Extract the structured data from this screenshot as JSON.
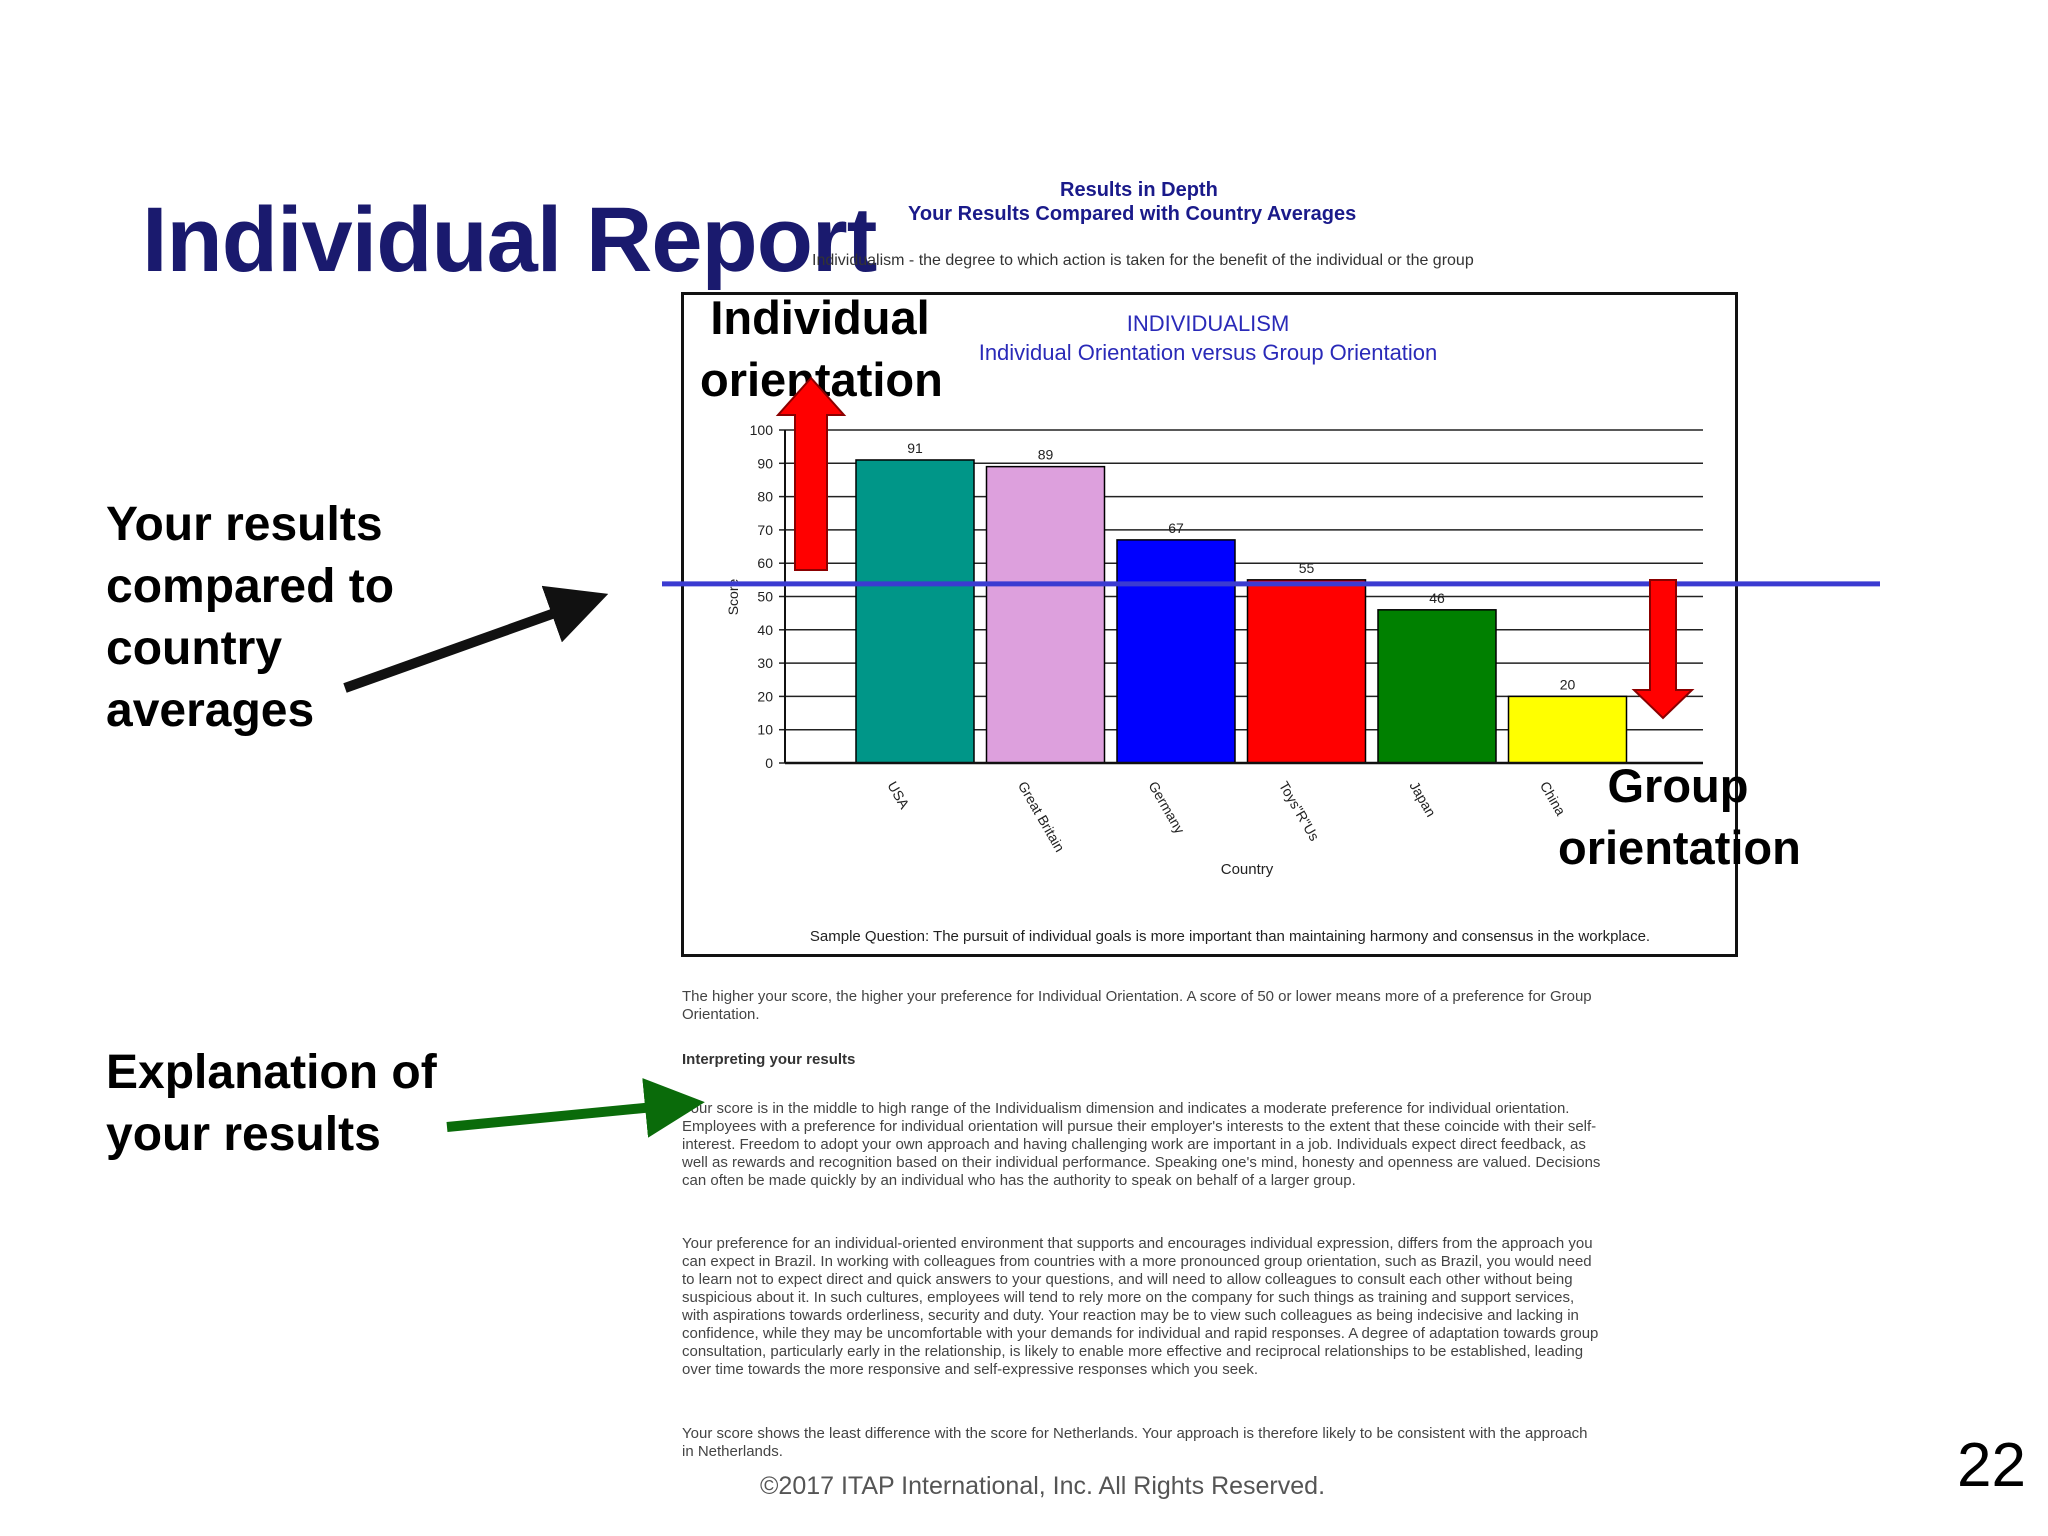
{
  "slide": {
    "title": "Individual Report",
    "page_number": "22",
    "footer": "©2017 ITAP International, Inc.  All Rights Reserved."
  },
  "report": {
    "heading": "Results in Depth",
    "subheading": "Your Results Compared with Country Averages",
    "definition": "Individualism - the degree to which action is taken for the benefit of the individual or the group",
    "interpretation_intro": "The higher your score, the higher your preference for Individual Orientation. A score of 50 or lower means more of a preference for Group Orientation.",
    "interpretation_heading": "Interpreting your results",
    "paragraphs": [
      "Your score is in the middle to high range of the Individualism dimension and indicates a moderate preference for individual orientation. Employees with a preference for individual orientation will pursue their employer's interests to the extent that these coincide with their self-interest. Freedom to adopt your own approach and having challenging work are important in a job. Individuals expect direct feedback, as well as rewards and recognition based on their individual performance. Speaking one's mind, honesty and openness are valued. Decisions can often be made quickly by an individual who has the authority to speak on behalf of a larger group.",
      "Your preference for an individual-oriented environment that supports and encourages individual expression, differs from the approach you can expect in Brazil. In working with colleagues from countries with a more pronounced group orientation, such as Brazil, you would need to learn not to expect direct and quick answers to your questions, and will need to allow colleagues to consult each other without being suspicious about it. In such cultures, employees will tend to rely more on the company for such things as training and support services, with aspirations towards orderliness, security and duty. Your reaction may be to view such colleagues as being indecisive and lacking in confidence, while they may be uncomfortable with your demands for individual and rapid responses. A degree of adaptation towards group consultation, particularly early in the relationship, is likely to enable more effective and reciprocal relationships to be established, leading over time towards the more responsive and self-expressive responses which you seek.",
      "Your score shows the least difference with the score for Netherlands. Your approach is therefore likely to be consistent with the approach in Netherlands."
    ]
  },
  "callouts": {
    "individual": [
      "Individual",
      "orientation"
    ],
    "group": [
      "Group",
      "orientation"
    ],
    "results": [
      "Your results",
      "compared to",
      "country",
      "averages"
    ],
    "explanation": [
      "Explanation of",
      "your results"
    ]
  },
  "chart_data": {
    "type": "bar",
    "title": "INDIVIDUALISM",
    "subtitle": "Individual Orientation versus Group Orientation",
    "xlabel": "Country",
    "ylabel": "Score",
    "categories": [
      "USA",
      "Great Britain",
      "Germany",
      "Toys\"R\"Us",
      "Japan",
      "China"
    ],
    "values": [
      91,
      89,
      67,
      55,
      46,
      20
    ],
    "data_labels": [
      "91",
      "89",
      "67",
      "55",
      "46",
      "20"
    ],
    "colors": [
      "#009688",
      "#dda0dd",
      "#0000ff",
      "#ff0000",
      "#008000",
      "#ffff00"
    ],
    "ylim": [
      0,
      100
    ],
    "yticks": [
      0,
      10,
      20,
      30,
      40,
      50,
      60,
      70,
      80,
      90,
      100
    ],
    "grid": true,
    "reference_line": 55,
    "reference_color": "#3b3bd1",
    "note": "Sample Question: The pursuit of individual goals is more important than maintaining harmony and consensus in the workplace."
  }
}
